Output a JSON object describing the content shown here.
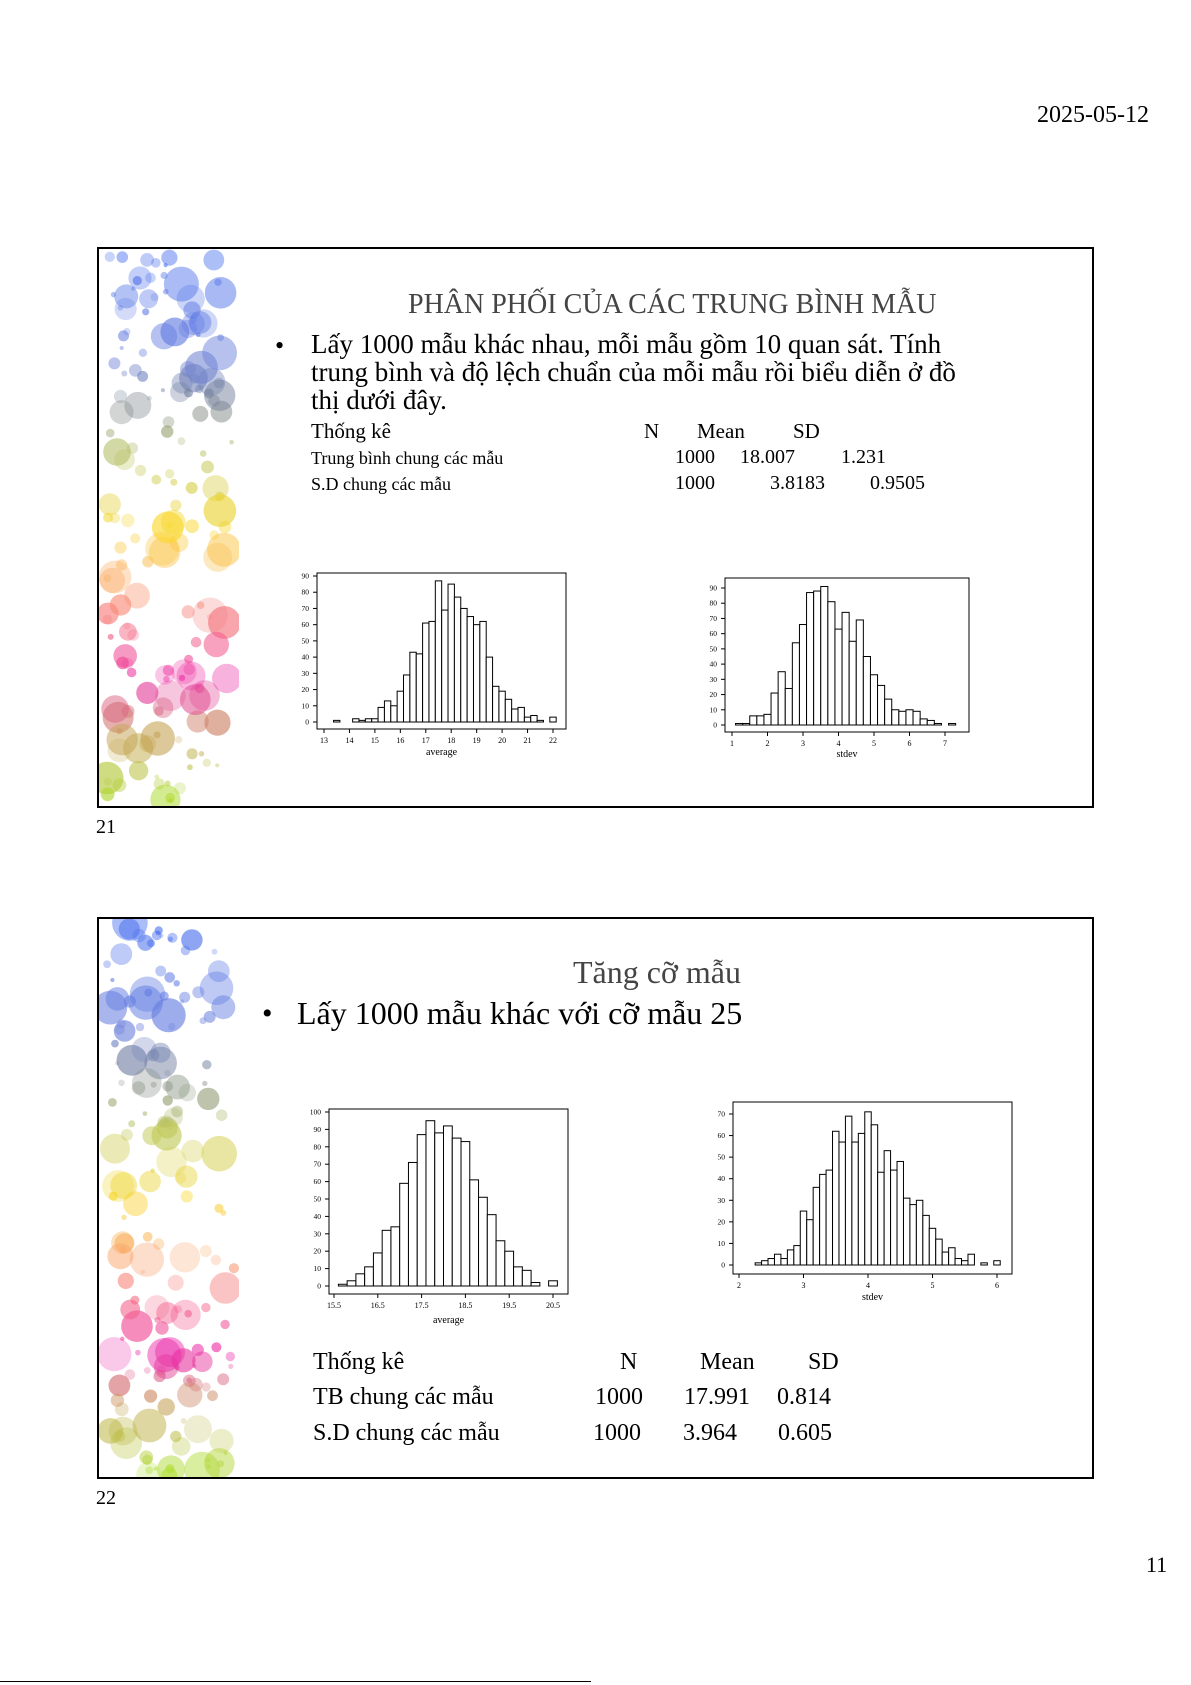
{
  "header": {
    "date": "2025-05-12"
  },
  "footer": {
    "page_number": "11"
  },
  "slides": [
    {
      "number": "21",
      "title": "PHÂN PHỐI CỦA CÁC TRUNG BÌNH MẪU",
      "bullet": "•",
      "bullet_lines": [
        "Lấy 1000 mẫu khác nhau, mỗi mẫu gồm 10 quan sát. Tính",
        "trung bình và độ lệch chuẩn của mỗi mẫu rồi biểu diễn ở đồ",
        "thị dưới đây."
      ],
      "table": {
        "headers": [
          "Thống kê",
          "N",
          "Mean",
          "SD"
        ],
        "rows": [
          [
            "Trung bình chung các mẫu",
            "1000",
            "18.007",
            "1.231"
          ],
          [
            "S.D chung các mẫu",
            "1000",
            "3.8183",
            "0.9505"
          ]
        ]
      }
    },
    {
      "number": "22",
      "title": "Tăng cỡ mẫu",
      "bullet": "•",
      "bullet_lines": [
        "Lấy 1000 mẫu khác với cỡ mẫu 25"
      ],
      "table": {
        "headers": [
          "Thống kê",
          "N",
          "Mean",
          "SD"
        ],
        "rows": [
          [
            "TB chung các mẫu",
            "1000",
            "17.991",
            "0.814"
          ],
          [
            "S.D chung các mẫu",
            "1000",
            "3.964",
            "0.605"
          ]
        ]
      }
    }
  ],
  "chart_data": [
    {
      "type": "bar",
      "subtype": "histogram",
      "xlabel": "average",
      "ylabel": "",
      "bin_start": 13.125,
      "bin_width": 0.25,
      "counts": [
        0,
        1,
        0,
        0,
        2,
        1,
        2,
        2,
        9,
        13,
        10,
        19,
        29,
        43,
        42,
        61,
        62,
        87,
        69,
        85,
        77,
        70,
        65,
        60,
        62,
        40,
        22,
        19,
        14,
        8,
        9,
        3,
        4,
        1,
        0,
        3
      ],
      "xticks": [
        "13",
        "14",
        "15",
        "16",
        "17",
        "18",
        "19",
        "20",
        "21",
        "22"
      ],
      "xtick_values": [
        13,
        14,
        15,
        16,
        17,
        18,
        19,
        20,
        21,
        22
      ],
      "yticks": [
        "0",
        "10",
        "20",
        "30",
        "40",
        "50",
        "60",
        "70",
        "80",
        "90"
      ],
      "ytick_values": [
        0,
        10,
        20,
        30,
        40,
        50,
        60,
        70,
        80,
        90
      ],
      "xlim": [
        13,
        22
      ],
      "ylim": [
        0,
        90
      ]
    },
    {
      "type": "bar",
      "subtype": "histogram",
      "xlabel": "stdev",
      "ylabel": "",
      "bin_start": 1.1,
      "bin_width": 0.2,
      "counts": [
        1,
        1,
        6,
        6,
        7,
        21,
        35,
        24,
        54,
        66,
        87,
        88,
        91,
        81,
        63,
        74,
        55,
        69,
        45,
        33,
        26,
        17,
        10,
        9,
        10,
        9,
        4,
        3,
        1,
        0,
        1
      ],
      "xticks": [
        "1",
        "2",
        "3",
        "4",
        "5",
        "6",
        "7"
      ],
      "xtick_values": [
        1,
        2,
        3,
        4,
        5,
        6,
        7
      ],
      "yticks": [
        "0",
        "10",
        "20",
        "30",
        "40",
        "50",
        "60",
        "70",
        "80",
        "90"
      ],
      "ytick_values": [
        0,
        10,
        20,
        30,
        40,
        50,
        60,
        70,
        80,
        90
      ],
      "xlim": [
        1,
        7
      ],
      "ylim": [
        0,
        90
      ]
    },
    {
      "type": "bar",
      "subtype": "histogram",
      "xlabel": "average",
      "ylabel": "",
      "bin_start": 15.6,
      "bin_width": 0.2,
      "counts": [
        1,
        3,
        7,
        11,
        19,
        32,
        34,
        59,
        71,
        87,
        95,
        88,
        92,
        85,
        83,
        61,
        51,
        41,
        26,
        20,
        11,
        9,
        2,
        0,
        3
      ],
      "xticks": [
        "15.5",
        "16.5",
        "17.5",
        "18.5",
        "19.5",
        "20.5"
      ],
      "xtick_values": [
        15.5,
        16.5,
        17.5,
        18.5,
        19.5,
        20.5
      ],
      "yticks": [
        "0",
        "10",
        "20",
        "30",
        "40",
        "50",
        "60",
        "70",
        "80",
        "90",
        "100"
      ],
      "ytick_values": [
        0,
        10,
        20,
        30,
        40,
        50,
        60,
        70,
        80,
        90,
        100
      ],
      "xlim": [
        15.5,
        20.5
      ],
      "ylim": [
        0,
        100
      ]
    },
    {
      "type": "bar",
      "subtype": "histogram",
      "xlabel": "stdev",
      "ylabel": "",
      "bin_start": 2.25,
      "bin_width": 0.1,
      "counts": [
        1,
        2,
        3,
        5,
        3,
        7,
        9,
        25,
        21,
        36,
        42,
        44,
        62,
        57,
        69,
        57,
        61,
        71,
        65,
        43,
        53,
        44,
        48,
        31,
        28,
        30,
        23,
        17,
        12,
        6,
        8,
        3,
        2,
        5,
        0,
        1,
        0,
        2
      ],
      "xticks": [
        "2",
        "3",
        "4",
        "5",
        "6"
      ],
      "xtick_values": [
        2,
        3,
        4,
        5,
        6
      ],
      "yticks": [
        "0",
        "10",
        "20",
        "30",
        "40",
        "50",
        "60",
        "70"
      ],
      "ytick_values": [
        0,
        10,
        20,
        30,
        40,
        50,
        60,
        70
      ],
      "xlim": [
        2,
        6
      ],
      "ylim": [
        0,
        70
      ]
    }
  ]
}
